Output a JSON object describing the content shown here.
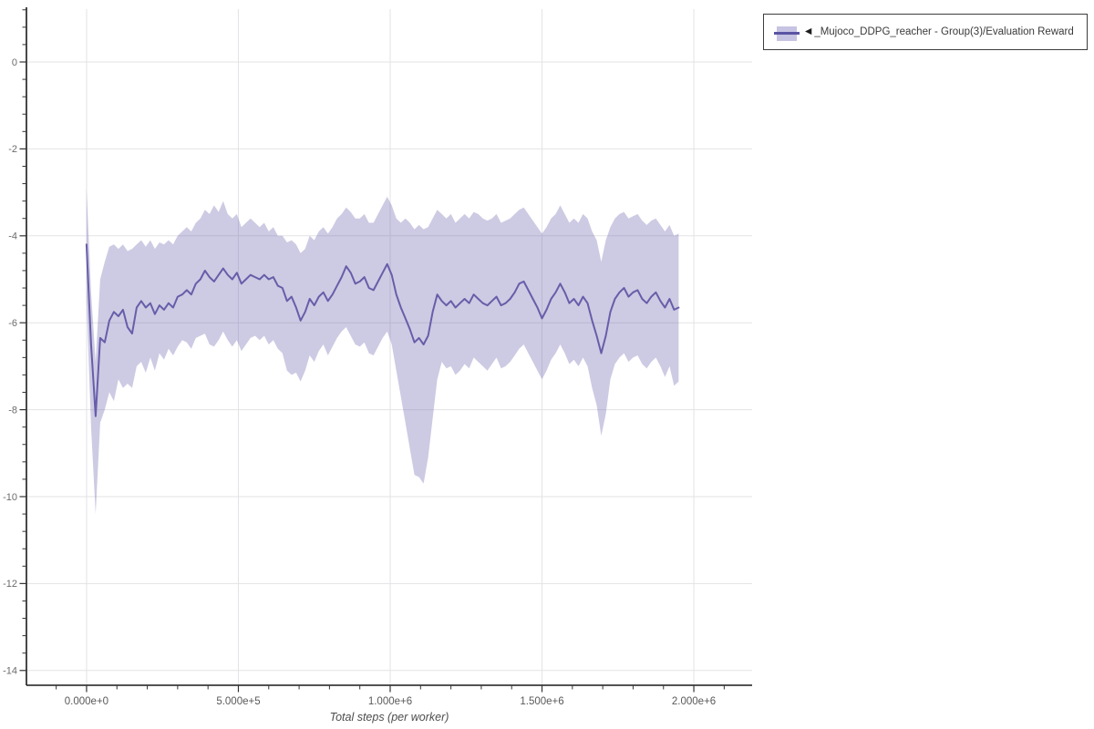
{
  "page": {
    "background": "#ffffff"
  },
  "legend": {
    "collapse_arrow": "◀",
    "label": "_Mujoco_DDPG_reacher - Group(3)/Evaluation Reward",
    "swatch_band_color": "#c7c3e2",
    "swatch_line_color": "#5b53a2",
    "border_color": "#3d3d3d",
    "text_color": "#3a3a3a"
  },
  "colors": {
    "line": "#665ea9",
    "band": "rgba(103,95,169,0.33)",
    "grid": "#e3e3e6",
    "axis": "#1a1a1a",
    "tick": "#333333",
    "y_tick_label": "#6b6b6b",
    "x_tick_label": "#595959",
    "axis_title": "#4d4d4d"
  },
  "chart_data": {
    "type": "line",
    "title": "",
    "xlabel": "Total steps (per worker)",
    "ylabel": "",
    "grid": true,
    "legend_position": "outside-top-right",
    "x_range": [
      -198000,
      2192000
    ],
    "y_range": [
      -14.34,
      1.216
    ],
    "x_major_ticks": [
      0,
      500000,
      1000000,
      1500000,
      2000000
    ],
    "x_tick_labels": [
      "0.000e+0",
      "5.000e+5",
      "1.000e+6",
      "1.500e+6",
      "2.000e+6"
    ],
    "x_minor_step": 100000,
    "x_minor_start": -100000,
    "x_minor_end": 2100000,
    "y_major_ticks": [
      0,
      -2,
      -4,
      -6,
      -8,
      -10,
      -12,
      -14
    ],
    "y_tick_labels": [
      "0",
      "-2",
      "-4",
      "-6",
      "-8",
      "-10",
      "-12",
      "-14"
    ],
    "y_minor_step": 0.4,
    "y_minor_start": 1.2,
    "y_minor_end": -14.0,
    "series": [
      {
        "name": "_Mujoco_DDPG_reacher - Group(3)/Evaluation Reward",
        "x_start": 0,
        "x_step": 15000,
        "mean": [
          -4.2,
          -6.5,
          -8.15,
          -6.35,
          -6.45,
          -5.95,
          -5.75,
          -5.85,
          -5.7,
          -6.1,
          -6.25,
          -5.65,
          -5.5,
          -5.65,
          -5.55,
          -5.8,
          -5.6,
          -5.7,
          -5.55,
          -5.65,
          -5.4,
          -5.35,
          -5.25,
          -5.35,
          -5.1,
          -5.0,
          -4.8,
          -4.95,
          -5.05,
          -4.9,
          -4.75,
          -4.9,
          -5.0,
          -4.85,
          -5.1,
          -5.0,
          -4.9,
          -4.95,
          -5.0,
          -4.9,
          -5.0,
          -4.95,
          -5.15,
          -5.2,
          -5.5,
          -5.4,
          -5.65,
          -5.95,
          -5.75,
          -5.45,
          -5.6,
          -5.4,
          -5.3,
          -5.5,
          -5.35,
          -5.15,
          -4.95,
          -4.7,
          -4.85,
          -5.1,
          -5.05,
          -4.95,
          -5.2,
          -5.25,
          -5.05,
          -4.85,
          -4.65,
          -4.9,
          -5.35,
          -5.65,
          -5.9,
          -6.15,
          -6.45,
          -6.35,
          -6.5,
          -6.3,
          -5.75,
          -5.35,
          -5.5,
          -5.6,
          -5.5,
          -5.65,
          -5.55,
          -5.45,
          -5.55,
          -5.35,
          -5.45,
          -5.55,
          -5.6,
          -5.5,
          -5.4,
          -5.6,
          -5.55,
          -5.45,
          -5.3,
          -5.1,
          -5.05,
          -5.25,
          -5.45,
          -5.65,
          -5.9,
          -5.7,
          -5.45,
          -5.3,
          -5.1,
          -5.3,
          -5.55,
          -5.45,
          -5.6,
          -5.4,
          -5.55,
          -5.95,
          -6.3,
          -6.7,
          -6.3,
          -5.75,
          -5.45,
          -5.3,
          -5.2,
          -5.4,
          -5.3,
          -5.25,
          -5.45,
          -5.55,
          -5.4,
          -5.3,
          -5.5,
          -5.65,
          -5.45,
          -5.7,
          -5.65
        ],
        "upper": [
          -2.9,
          -5.3,
          -6.9,
          -5.0,
          -4.6,
          -4.25,
          -4.2,
          -4.3,
          -4.2,
          -4.35,
          -4.3,
          -4.2,
          -4.1,
          -4.25,
          -4.1,
          -4.3,
          -4.15,
          -4.2,
          -4.1,
          -4.2,
          -4.0,
          -3.9,
          -3.8,
          -3.9,
          -3.7,
          -3.6,
          -3.4,
          -3.5,
          -3.3,
          -3.45,
          -3.2,
          -3.5,
          -3.6,
          -3.5,
          -3.8,
          -3.7,
          -3.6,
          -3.7,
          -3.8,
          -3.7,
          -3.9,
          -3.8,
          -4.0,
          -4.0,
          -4.15,
          -4.1,
          -4.2,
          -4.4,
          -4.3,
          -4.0,
          -4.1,
          -3.9,
          -3.8,
          -3.95,
          -3.8,
          -3.6,
          -3.5,
          -3.35,
          -3.45,
          -3.6,
          -3.6,
          -3.5,
          -3.7,
          -3.7,
          -3.5,
          -3.3,
          -3.1,
          -3.3,
          -3.6,
          -3.7,
          -3.6,
          -3.7,
          -3.85,
          -3.75,
          -3.85,
          -3.8,
          -3.6,
          -3.4,
          -3.5,
          -3.6,
          -3.5,
          -3.7,
          -3.6,
          -3.5,
          -3.6,
          -3.45,
          -3.5,
          -3.6,
          -3.65,
          -3.6,
          -3.5,
          -3.7,
          -3.65,
          -3.6,
          -3.5,
          -3.4,
          -3.35,
          -3.5,
          -3.65,
          -3.8,
          -3.95,
          -3.8,
          -3.6,
          -3.5,
          -3.3,
          -3.5,
          -3.7,
          -3.6,
          -3.7,
          -3.5,
          -3.6,
          -3.9,
          -4.1,
          -4.6,
          -4.1,
          -3.8,
          -3.6,
          -3.5,
          -3.45,
          -3.6,
          -3.55,
          -3.5,
          -3.65,
          -3.75,
          -3.65,
          -3.6,
          -3.75,
          -3.9,
          -3.75,
          -4.0,
          -3.95
        ],
        "lower": [
          -5.5,
          -8.4,
          -10.4,
          -8.3,
          -8.0,
          -7.6,
          -7.8,
          -7.3,
          -7.5,
          -7.4,
          -7.5,
          -7.0,
          -6.9,
          -7.15,
          -6.8,
          -7.1,
          -6.7,
          -6.85,
          -6.6,
          -6.75,
          -6.55,
          -6.4,
          -6.45,
          -6.6,
          -6.35,
          -6.3,
          -6.25,
          -6.5,
          -6.55,
          -6.4,
          -6.2,
          -6.4,
          -6.55,
          -6.4,
          -6.65,
          -6.5,
          -6.35,
          -6.3,
          -6.4,
          -6.3,
          -6.5,
          -6.4,
          -6.6,
          -6.7,
          -7.1,
          -7.2,
          -7.15,
          -7.35,
          -7.1,
          -6.75,
          -6.9,
          -6.65,
          -6.5,
          -6.75,
          -6.55,
          -6.35,
          -6.2,
          -6.1,
          -6.3,
          -6.5,
          -6.55,
          -6.45,
          -6.7,
          -6.75,
          -6.55,
          -6.35,
          -6.2,
          -6.5,
          -7.1,
          -7.7,
          -8.3,
          -8.9,
          -9.5,
          -9.55,
          -9.7,
          -9.1,
          -8.2,
          -7.3,
          -6.9,
          -7.05,
          -7.0,
          -7.2,
          -7.1,
          -6.95,
          -7.05,
          -6.8,
          -6.9,
          -7.0,
          -7.1,
          -6.95,
          -6.8,
          -7.05,
          -7.0,
          -6.9,
          -6.75,
          -6.6,
          -6.5,
          -6.7,
          -6.9,
          -7.1,
          -7.3,
          -7.1,
          -6.85,
          -6.7,
          -6.5,
          -6.7,
          -6.95,
          -6.85,
          -7.0,
          -6.8,
          -7.0,
          -7.5,
          -7.9,
          -8.6,
          -8.1,
          -7.3,
          -6.95,
          -6.8,
          -6.7,
          -6.9,
          -6.8,
          -6.75,
          -6.95,
          -7.05,
          -6.9,
          -6.8,
          -7.0,
          -7.25,
          -7.0,
          -7.45,
          -7.35
        ]
      }
    ]
  }
}
